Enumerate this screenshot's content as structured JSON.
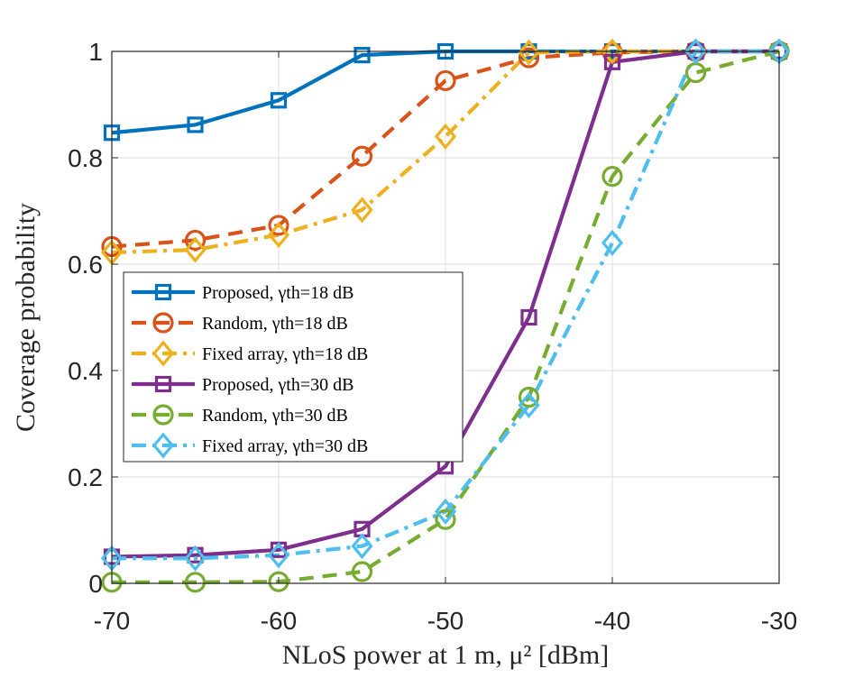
{
  "chart_data": {
    "type": "line",
    "title": "",
    "xlabel": "NLoS power at 1 m, μ² [dBm]",
    "ylabel": "Coverage probability",
    "xlim": [
      -70,
      -30
    ],
    "ylim": [
      0,
      1
    ],
    "x_ticks": [
      "-70",
      "-60",
      "-50",
      "-40",
      "-30"
    ],
    "y_ticks": [
      "0",
      "0.2",
      "0.4",
      "0.6",
      "0.8",
      "1"
    ],
    "grid": true,
    "legend_position": "center-left",
    "x": [
      -70,
      -65,
      -60,
      -55,
      -50,
      -45,
      -40,
      -35,
      -30
    ],
    "series": [
      {
        "name": "Proposed, γth=18 dB",
        "color": "#0072BD",
        "dash": "solid",
        "marker": "square",
        "values": [
          0.847,
          0.862,
          0.908,
          0.993,
          1.0,
          1.0,
          1.0,
          1.0,
          1.0
        ]
      },
      {
        "name": "Random, γth=18 dB",
        "color": "#D95319",
        "dash": "dashed",
        "marker": "circle",
        "values": [
          0.633,
          0.645,
          0.673,
          0.803,
          0.945,
          0.988,
          0.998,
          1.0,
          1.0
        ]
      },
      {
        "name": "Fixed array, γth=18 dB",
        "color": "#EDB120",
        "dash": "dashdot",
        "marker": "diamond",
        "values": [
          0.622,
          0.627,
          0.655,
          0.702,
          0.84,
          0.998,
          1.0,
          1.0,
          1.0
        ]
      },
      {
        "name": "Proposed, γth=30 dB",
        "color": "#7E2F8E",
        "dash": "solid",
        "marker": "square",
        "values": [
          0.05,
          0.053,
          0.063,
          0.102,
          0.22,
          0.5,
          0.98,
          1.0,
          1.0
        ]
      },
      {
        "name": "Random, γth=30 dB",
        "color": "#77AC30",
        "dash": "dashed",
        "marker": "circle",
        "values": [
          0.002,
          0.002,
          0.003,
          0.022,
          0.12,
          0.35,
          0.765,
          0.96,
          1.0
        ]
      },
      {
        "name": "Fixed array, γth=30 dB",
        "color": "#4DBEEE",
        "dash": "dashdot",
        "marker": "diamond",
        "values": [
          0.047,
          0.047,
          0.053,
          0.07,
          0.135,
          0.335,
          0.64,
          1.0,
          1.0
        ]
      }
    ]
  }
}
